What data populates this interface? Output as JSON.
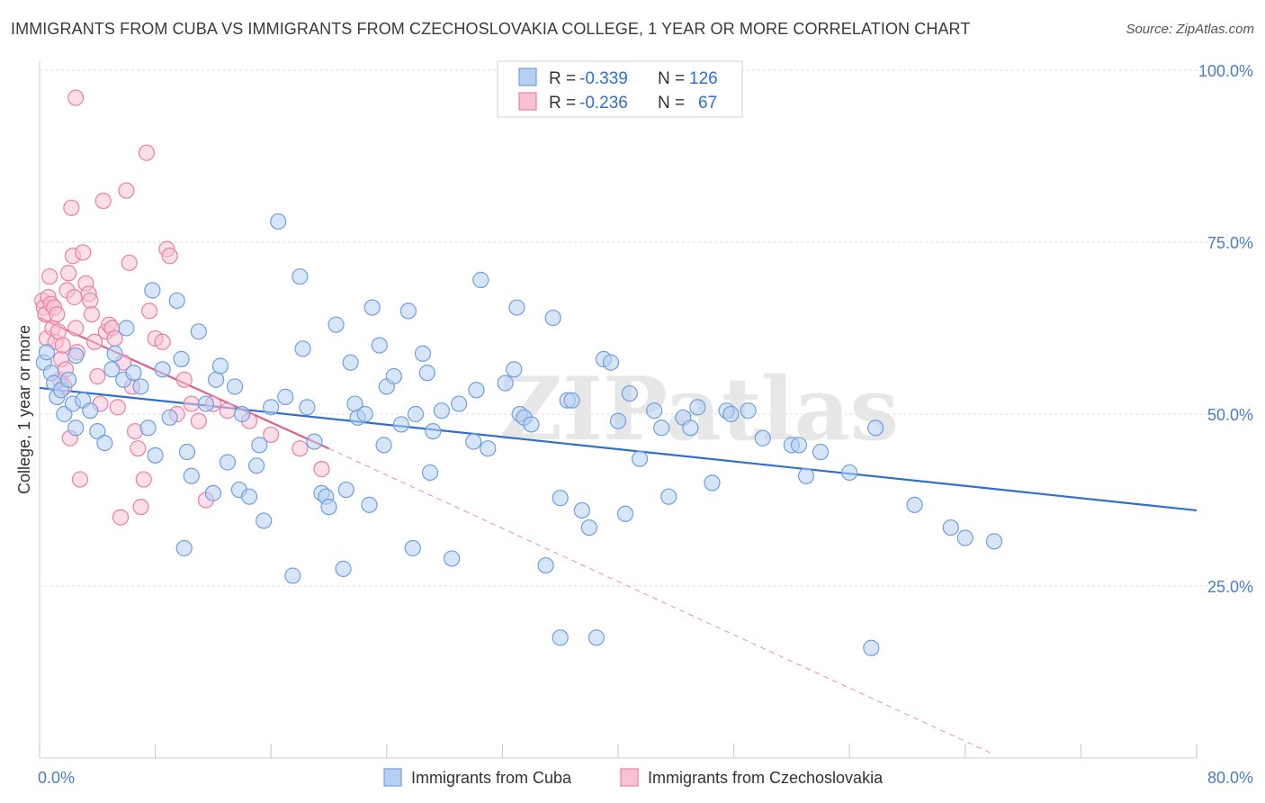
{
  "title": "IMMIGRANTS FROM CUBA VS IMMIGRANTS FROM CZECHOSLOVAKIA COLLEGE, 1 YEAR OR MORE CORRELATION CHART",
  "source": "Source: ZipAtlas.com",
  "watermark": "ZIPatlas",
  "colors": {
    "cuba": "#6f9fe0",
    "cuba_fill": "#b7cff2",
    "cuba_line": "#2f6fcf",
    "czech": "#ec7fa3",
    "czech_fill": "#f7c3d4",
    "czech_line": "#e0608c",
    "grid": "#dddddd",
    "tick_text": "#4a7cc7"
  },
  "legend": {
    "rows": [
      {
        "r_label": "R =",
        "r_value": "-0.339",
        "n_label": "N =",
        "n_value": "126"
      },
      {
        "r_label": "R =",
        "r_value": "-0.236",
        "n_label": "N =",
        "n_value": "67"
      }
    ]
  },
  "bottom_legend": {
    "cuba": "Immigrants from Cuba",
    "czech": "Immigrants from Czechoslovakia"
  },
  "chart_data": {
    "type": "scatter",
    "title": "IMMIGRANTS FROM CUBA VS IMMIGRANTS FROM CZECHOSLOVAKIA COLLEGE, 1 YEAR OR MORE CORRELATION CHART",
    "xlabel": "",
    "ylabel": "College, 1 year or more",
    "xlim": [
      0,
      80
    ],
    "ylim": [
      0,
      100
    ],
    "x_ticks": [
      "0.0%",
      "80.0%"
    ],
    "y_ticks": [
      "25.0%",
      "50.0%",
      "75.0%",
      "100.0%"
    ],
    "y_tick_values": [
      25,
      50,
      75,
      100
    ],
    "grid": true,
    "legend_position": "top-center",
    "series": [
      {
        "name": "Immigrants from Cuba",
        "R": -0.339,
        "N": 126,
        "trend": {
          "x0": 0,
          "y0": 53.8,
          "x1": 80,
          "y1": 36.0
        },
        "points": [
          [
            0.3,
            57.5
          ],
          [
            0.5,
            59.0
          ],
          [
            0.8,
            56.0
          ],
          [
            1.0,
            54.5
          ],
          [
            1.2,
            52.5
          ],
          [
            1.5,
            53.5
          ],
          [
            1.7,
            50.0
          ],
          [
            2.0,
            55.0
          ],
          [
            2.3,
            51.5
          ],
          [
            2.5,
            48.0
          ],
          [
            3.0,
            52.0
          ],
          [
            3.5,
            50.5
          ],
          [
            4.0,
            47.5
          ],
          [
            4.5,
            45.8
          ],
          [
            5.0,
            56.5
          ],
          [
            5.2,
            58.8
          ],
          [
            5.8,
            55.0
          ],
          [
            6.0,
            62.5
          ],
          [
            6.5,
            56.0
          ],
          [
            7.0,
            54.0
          ],
          [
            7.5,
            48.0
          ],
          [
            7.8,
            68.0
          ],
          [
            8.0,
            44.0
          ],
          [
            8.5,
            56.5
          ],
          [
            9.0,
            49.5
          ],
          [
            9.5,
            66.5
          ],
          [
            9.8,
            58.0
          ],
          [
            10.2,
            44.5
          ],
          [
            10.5,
            41.0
          ],
          [
            10.0,
            30.5
          ],
          [
            11.0,
            62.0
          ],
          [
            11.5,
            51.5
          ],
          [
            12.0,
            38.5
          ],
          [
            12.2,
            55.0
          ],
          [
            12.5,
            57.0
          ],
          [
            13.0,
            43.0
          ],
          [
            13.5,
            54.0
          ],
          [
            13.8,
            39.0
          ],
          [
            14.0,
            50.0
          ],
          [
            14.5,
            38.0
          ],
          [
            15.0,
            42.5
          ],
          [
            15.2,
            45.5
          ],
          [
            15.5,
            34.5
          ],
          [
            16.0,
            51.0
          ],
          [
            16.5,
            78.0
          ],
          [
            17.0,
            52.5
          ],
          [
            17.5,
            26.5
          ],
          [
            18.0,
            70.0
          ],
          [
            18.2,
            59.5
          ],
          [
            18.5,
            51.0
          ],
          [
            19.0,
            46.0
          ],
          [
            19.5,
            38.5
          ],
          [
            19.8,
            38.0
          ],
          [
            20.0,
            36.5
          ],
          [
            20.5,
            63.0
          ],
          [
            21.0,
            27.5
          ],
          [
            21.2,
            39.0
          ],
          [
            21.5,
            57.5
          ],
          [
            21.8,
            51.5
          ],
          [
            22.0,
            49.5
          ],
          [
            22.5,
            50.0
          ],
          [
            22.8,
            36.8
          ],
          [
            23.0,
            65.5
          ],
          [
            23.5,
            60.0
          ],
          [
            23.8,
            45.5
          ],
          [
            24.0,
            54.0
          ],
          [
            24.5,
            55.5
          ],
          [
            25.0,
            48.5
          ],
          [
            25.5,
            65.0
          ],
          [
            25.8,
            30.5
          ],
          [
            26.0,
            50.0
          ],
          [
            26.5,
            58.8
          ],
          [
            26.8,
            56.0
          ],
          [
            27.0,
            41.5
          ],
          [
            27.2,
            47.5
          ],
          [
            27.8,
            50.5
          ],
          [
            28.5,
            29.0
          ],
          [
            29.0,
            51.5
          ],
          [
            30.0,
            46.0
          ],
          [
            30.2,
            53.5
          ],
          [
            30.5,
            69.5
          ],
          [
            31.0,
            45.0
          ],
          [
            32.2,
            54.5
          ],
          [
            32.8,
            56.5
          ],
          [
            33.0,
            65.5
          ],
          [
            33.2,
            50.0
          ],
          [
            33.5,
            49.5
          ],
          [
            34.0,
            48.5
          ],
          [
            35.0,
            28.0
          ],
          [
            35.5,
            64.0
          ],
          [
            36.0,
            37.8
          ],
          [
            36.5,
            52.0
          ],
          [
            36.8,
            52.0
          ],
          [
            36.0,
            17.5
          ],
          [
            37.5,
            36.0
          ],
          [
            38.0,
            33.5
          ],
          [
            38.5,
            17.5
          ],
          [
            39.0,
            58.0
          ],
          [
            39.5,
            57.5
          ],
          [
            40.0,
            49.0
          ],
          [
            40.5,
            35.5
          ],
          [
            40.8,
            53.0
          ],
          [
            41.5,
            43.5
          ],
          [
            42.5,
            50.5
          ],
          [
            43.0,
            48.0
          ],
          [
            43.5,
            38.0
          ],
          [
            44.5,
            49.5
          ],
          [
            45.0,
            48.0
          ],
          [
            45.5,
            51.0
          ],
          [
            46.5,
            40.0
          ],
          [
            47.5,
            50.5
          ],
          [
            47.8,
            50.0
          ],
          [
            49.0,
            50.5
          ],
          [
            50.0,
            46.5
          ],
          [
            52.0,
            45.5
          ],
          [
            52.5,
            45.5
          ],
          [
            53.0,
            41.0
          ],
          [
            54.0,
            44.5
          ],
          [
            57.5,
            16.0
          ],
          [
            57.8,
            48.0
          ],
          [
            60.5,
            36.8
          ],
          [
            63.0,
            33.5
          ],
          [
            64.0,
            32.0
          ],
          [
            66.0,
            31.5
          ],
          [
            56.0,
            41.5
          ],
          [
            2.5,
            58.5
          ]
        ]
      },
      {
        "name": "Immigrants from Czechoslovakia",
        "R": -0.236,
        "N": 67,
        "trend": {
          "x0": 0,
          "y0": 64.0,
          "x1": 20,
          "y1": 45.0
        },
        "trend_dashed": {
          "x0": 20,
          "y0": 45.0,
          "x1": 66,
          "y1": 0.5
        },
        "points": [
          [
            0.2,
            66.5
          ],
          [
            0.3,
            65.5
          ],
          [
            0.4,
            64.5
          ],
          [
            0.5,
            61.0
          ],
          [
            0.6,
            67.0
          ],
          [
            0.7,
            70.0
          ],
          [
            0.8,
            66.0
          ],
          [
            0.9,
            62.5
          ],
          [
            1.0,
            65.5
          ],
          [
            1.1,
            60.5
          ],
          [
            1.2,
            64.5
          ],
          [
            1.3,
            62.0
          ],
          [
            1.4,
            55.0
          ],
          [
            1.5,
            58.0
          ],
          [
            1.6,
            60.0
          ],
          [
            1.7,
            54.0
          ],
          [
            1.8,
            56.5
          ],
          [
            1.9,
            68.0
          ],
          [
            2.0,
            70.5
          ],
          [
            2.1,
            46.5
          ],
          [
            2.2,
            80.0
          ],
          [
            2.3,
            73.0
          ],
          [
            2.4,
            67.0
          ],
          [
            2.5,
            62.5
          ],
          [
            2.6,
            59.0
          ],
          [
            2.8,
            40.5
          ],
          [
            3.0,
            73.5
          ],
          [
            3.2,
            69.0
          ],
          [
            3.4,
            67.5
          ],
          [
            3.5,
            66.5
          ],
          [
            3.6,
            64.5
          ],
          [
            3.8,
            60.5
          ],
          [
            4.0,
            55.5
          ],
          [
            4.2,
            51.5
          ],
          [
            4.4,
            81.0
          ],
          [
            4.6,
            62.0
          ],
          [
            4.8,
            63.0
          ],
          [
            5.0,
            62.5
          ],
          [
            5.2,
            61.0
          ],
          [
            5.4,
            51.0
          ],
          [
            5.6,
            35.0
          ],
          [
            5.8,
            57.5
          ],
          [
            6.0,
            82.5
          ],
          [
            6.2,
            72.0
          ],
          [
            6.4,
            54.0
          ],
          [
            6.6,
            47.5
          ],
          [
            6.8,
            45.0
          ],
          [
            7.0,
            36.5
          ],
          [
            7.2,
            40.5
          ],
          [
            7.4,
            88.0
          ],
          [
            7.6,
            65.0
          ],
          [
            8.0,
            61.0
          ],
          [
            8.5,
            60.5
          ],
          [
            8.8,
            74.0
          ],
          [
            9.0,
            73.0
          ],
          [
            9.5,
            50.0
          ],
          [
            10.0,
            55.0
          ],
          [
            10.5,
            51.5
          ],
          [
            11.0,
            49.0
          ],
          [
            11.5,
            37.5
          ],
          [
            12.0,
            51.5
          ],
          [
            13.0,
            50.5
          ],
          [
            14.5,
            49.0
          ],
          [
            16.0,
            47.0
          ],
          [
            18.0,
            45.0
          ],
          [
            19.5,
            42.0
          ],
          [
            2.5,
            96.0
          ]
        ]
      }
    ]
  }
}
